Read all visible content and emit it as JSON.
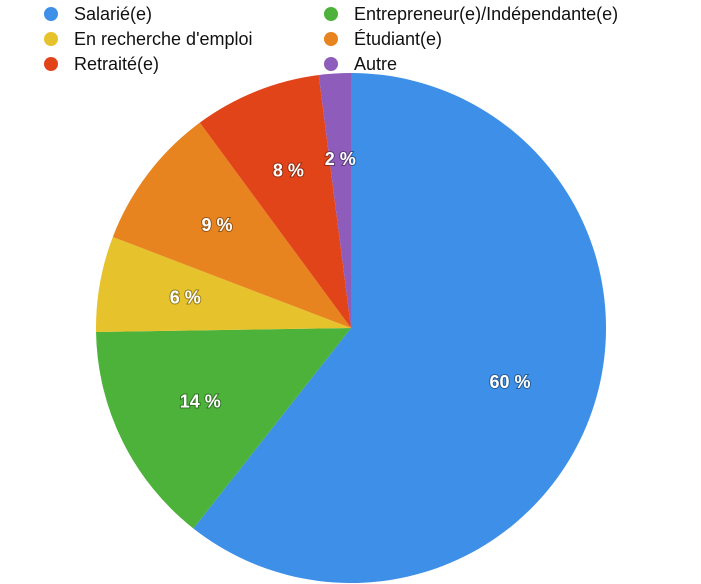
{
  "chart_data": {
    "type": "pie",
    "categories": [
      "Salarié(e)",
      "Entrepreneur(e)/Indépendante(e)",
      "En recherche d'emploi",
      "Étudiant(e)",
      "Retraité(e)",
      "Autre"
    ],
    "values": [
      60,
      14,
      6,
      9,
      8,
      2
    ],
    "value_labels": [
      "60 %",
      "14 %",
      "6 %",
      "9 %",
      "8 %",
      "2 %"
    ],
    "colors": [
      "#3d8fe8",
      "#4cb23a",
      "#e6c22c",
      "#e8841f",
      "#e2441a",
      "#8e5cbb"
    ]
  }
}
